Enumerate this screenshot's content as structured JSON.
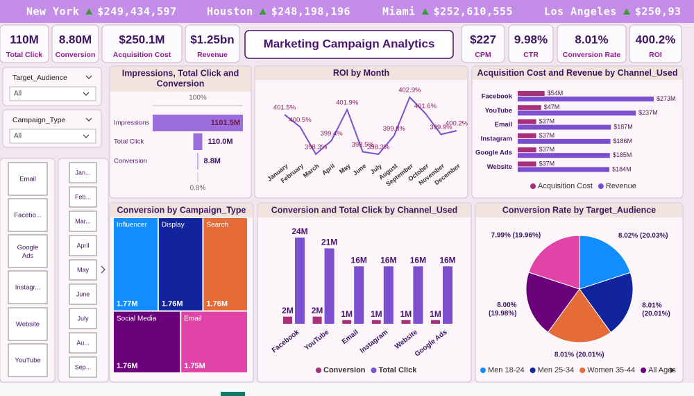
{
  "ticker": [
    {
      "city": "New York",
      "value": "$249,434,597"
    },
    {
      "city": "Houston",
      "value": "$248,198,196"
    },
    {
      "city": "Miami",
      "value": "$252,610,555"
    },
    {
      "city": "Los Angeles",
      "value": "$250,93"
    }
  ],
  "kpis_left": [
    {
      "value": "110M",
      "label": "Total Click"
    },
    {
      "value": "8.80M",
      "label": "Conversion"
    },
    {
      "value": "$250.1M",
      "label": "Acquisition Cost"
    },
    {
      "value": "$1.25bn",
      "label": "Revenue"
    }
  ],
  "title": "Marketing Campaign Analytics",
  "kpis_right": [
    {
      "value": "$227",
      "label": "CPM"
    },
    {
      "value": "9.98%",
      "label": "CTR"
    },
    {
      "value": "8.01%",
      "label": "Conversion Rate"
    },
    {
      "value": "400.2%",
      "label": "ROI"
    }
  ],
  "slicers": [
    {
      "label": "Target_Audience",
      "selection": "All"
    },
    {
      "label": "Campaign_Type",
      "selection": "All"
    }
  ],
  "channel_buttons": [
    "Email",
    "Facebo...",
    "Google Ads",
    "Instagr...",
    "Website",
    "YouTube"
  ],
  "month_buttons": [
    "Jan...",
    "Feb...",
    "Mar...",
    "April",
    "May",
    "June",
    "July",
    "Au...",
    "Sep..."
  ],
  "chart_data": [
    {
      "type": "funnel",
      "title": "Impressions, Total Click and Conversion",
      "categories": [
        "Impressions",
        "Total Click",
        "Conversion"
      ],
      "values": [
        1101.5,
        110.0,
        8.8
      ],
      "value_labels": [
        "1101.5M",
        "110.0M",
        "8.8M"
      ],
      "top_label": "100%",
      "bottom_label": "0.8%",
      "color": "#9a6fdb"
    },
    {
      "type": "line",
      "title": "ROI by Month",
      "categories": [
        "January",
        "February",
        "March",
        "April",
        "May",
        "June",
        "July",
        "August",
        "September",
        "October",
        "November",
        "December"
      ],
      "values": [
        401.5,
        400.5,
        398.3,
        399.4,
        401.9,
        398.5,
        398.3,
        399.8,
        402.9,
        401.6,
        399.9,
        400.2
      ],
      "value_labels": [
        "401.5%",
        "400.5%",
        "398.3%",
        "399.4%",
        "401.9%",
        "398.5%",
        "398.3%",
        "399.8%",
        "402.9%",
        "401.6%",
        "399.9%",
        "400.2%"
      ],
      "color": "#7b4fd0"
    },
    {
      "type": "hbar",
      "title": "Acquisition Cost and Revenue by Channel_Used",
      "categories": [
        "Facebook",
        "YouTube",
        "Email",
        "Instagram",
        "Google Ads",
        "Website"
      ],
      "series": [
        {
          "name": "Acquisition Cost",
          "color": "#a8307a",
          "values": [
            54,
            47,
            37,
            37,
            37,
            37
          ],
          "value_labels": [
            "$54M",
            "$47M",
            "$37M",
            "$37M",
            "$37M",
            "$37M"
          ]
        },
        {
          "name": "Revenue",
          "color": "#7b4fd0",
          "values": [
            273,
            237,
            187,
            186,
            185,
            184
          ],
          "value_labels": [
            "$273M",
            "$237M",
            "$187M",
            "$186M",
            "$185M",
            "$184M"
          ]
        }
      ]
    },
    {
      "type": "treemap",
      "title": "Conversion by Campaign_Type",
      "categories": [
        "Influencer",
        "Display",
        "Search",
        "Social Media",
        "Email"
      ],
      "values": [
        1.77,
        1.76,
        1.76,
        1.76,
        1.75
      ],
      "value_labels": [
        "1.77M",
        "1.76M",
        "1.76M",
        "1.76M",
        "1.75M"
      ],
      "colors": [
        "#118dff",
        "#12239e",
        "#e66c37",
        "#6b007b",
        "#e044a7"
      ]
    },
    {
      "type": "bar",
      "title": "Conversion and Total Click by Channel_Used",
      "categories": [
        "Facebook",
        "YouTube",
        "Email",
        "Instagram",
        "Website",
        "Google Ads"
      ],
      "series": [
        {
          "name": "Conversion",
          "color": "#a8307a",
          "values": [
            2,
            2,
            1,
            1,
            1,
            1
          ],
          "value_labels": [
            "2M",
            "2M",
            "1M",
            "1M",
            "1M",
            "1M"
          ]
        },
        {
          "name": "Total Click",
          "color": "#7b4fd0",
          "values": [
            24,
            21,
            16,
            16,
            16,
            16
          ],
          "value_labels": [
            "24M",
            "21M",
            "16M",
            "16M",
            "16M",
            "16M"
          ]
        }
      ]
    },
    {
      "type": "pie",
      "title": "Conversion Rate by Target_Audience",
      "categories": [
        "Men 18-24",
        "Men 25-34",
        "Women 35-44",
        "All Ages",
        null
      ],
      "values": [
        8.02,
        8.01,
        8.01,
        8.0,
        7.99
      ],
      "value_labels": [
        "8.02% (20.03%)",
        "8.01% (20.01%)",
        "8.01% (20.01%)",
        "8.00% (19.98%)",
        "7.99% (19.96%)"
      ],
      "colors": [
        "#118dff",
        "#12239e",
        "#e66c37",
        "#6b007b",
        "#e044a7"
      ]
    }
  ]
}
